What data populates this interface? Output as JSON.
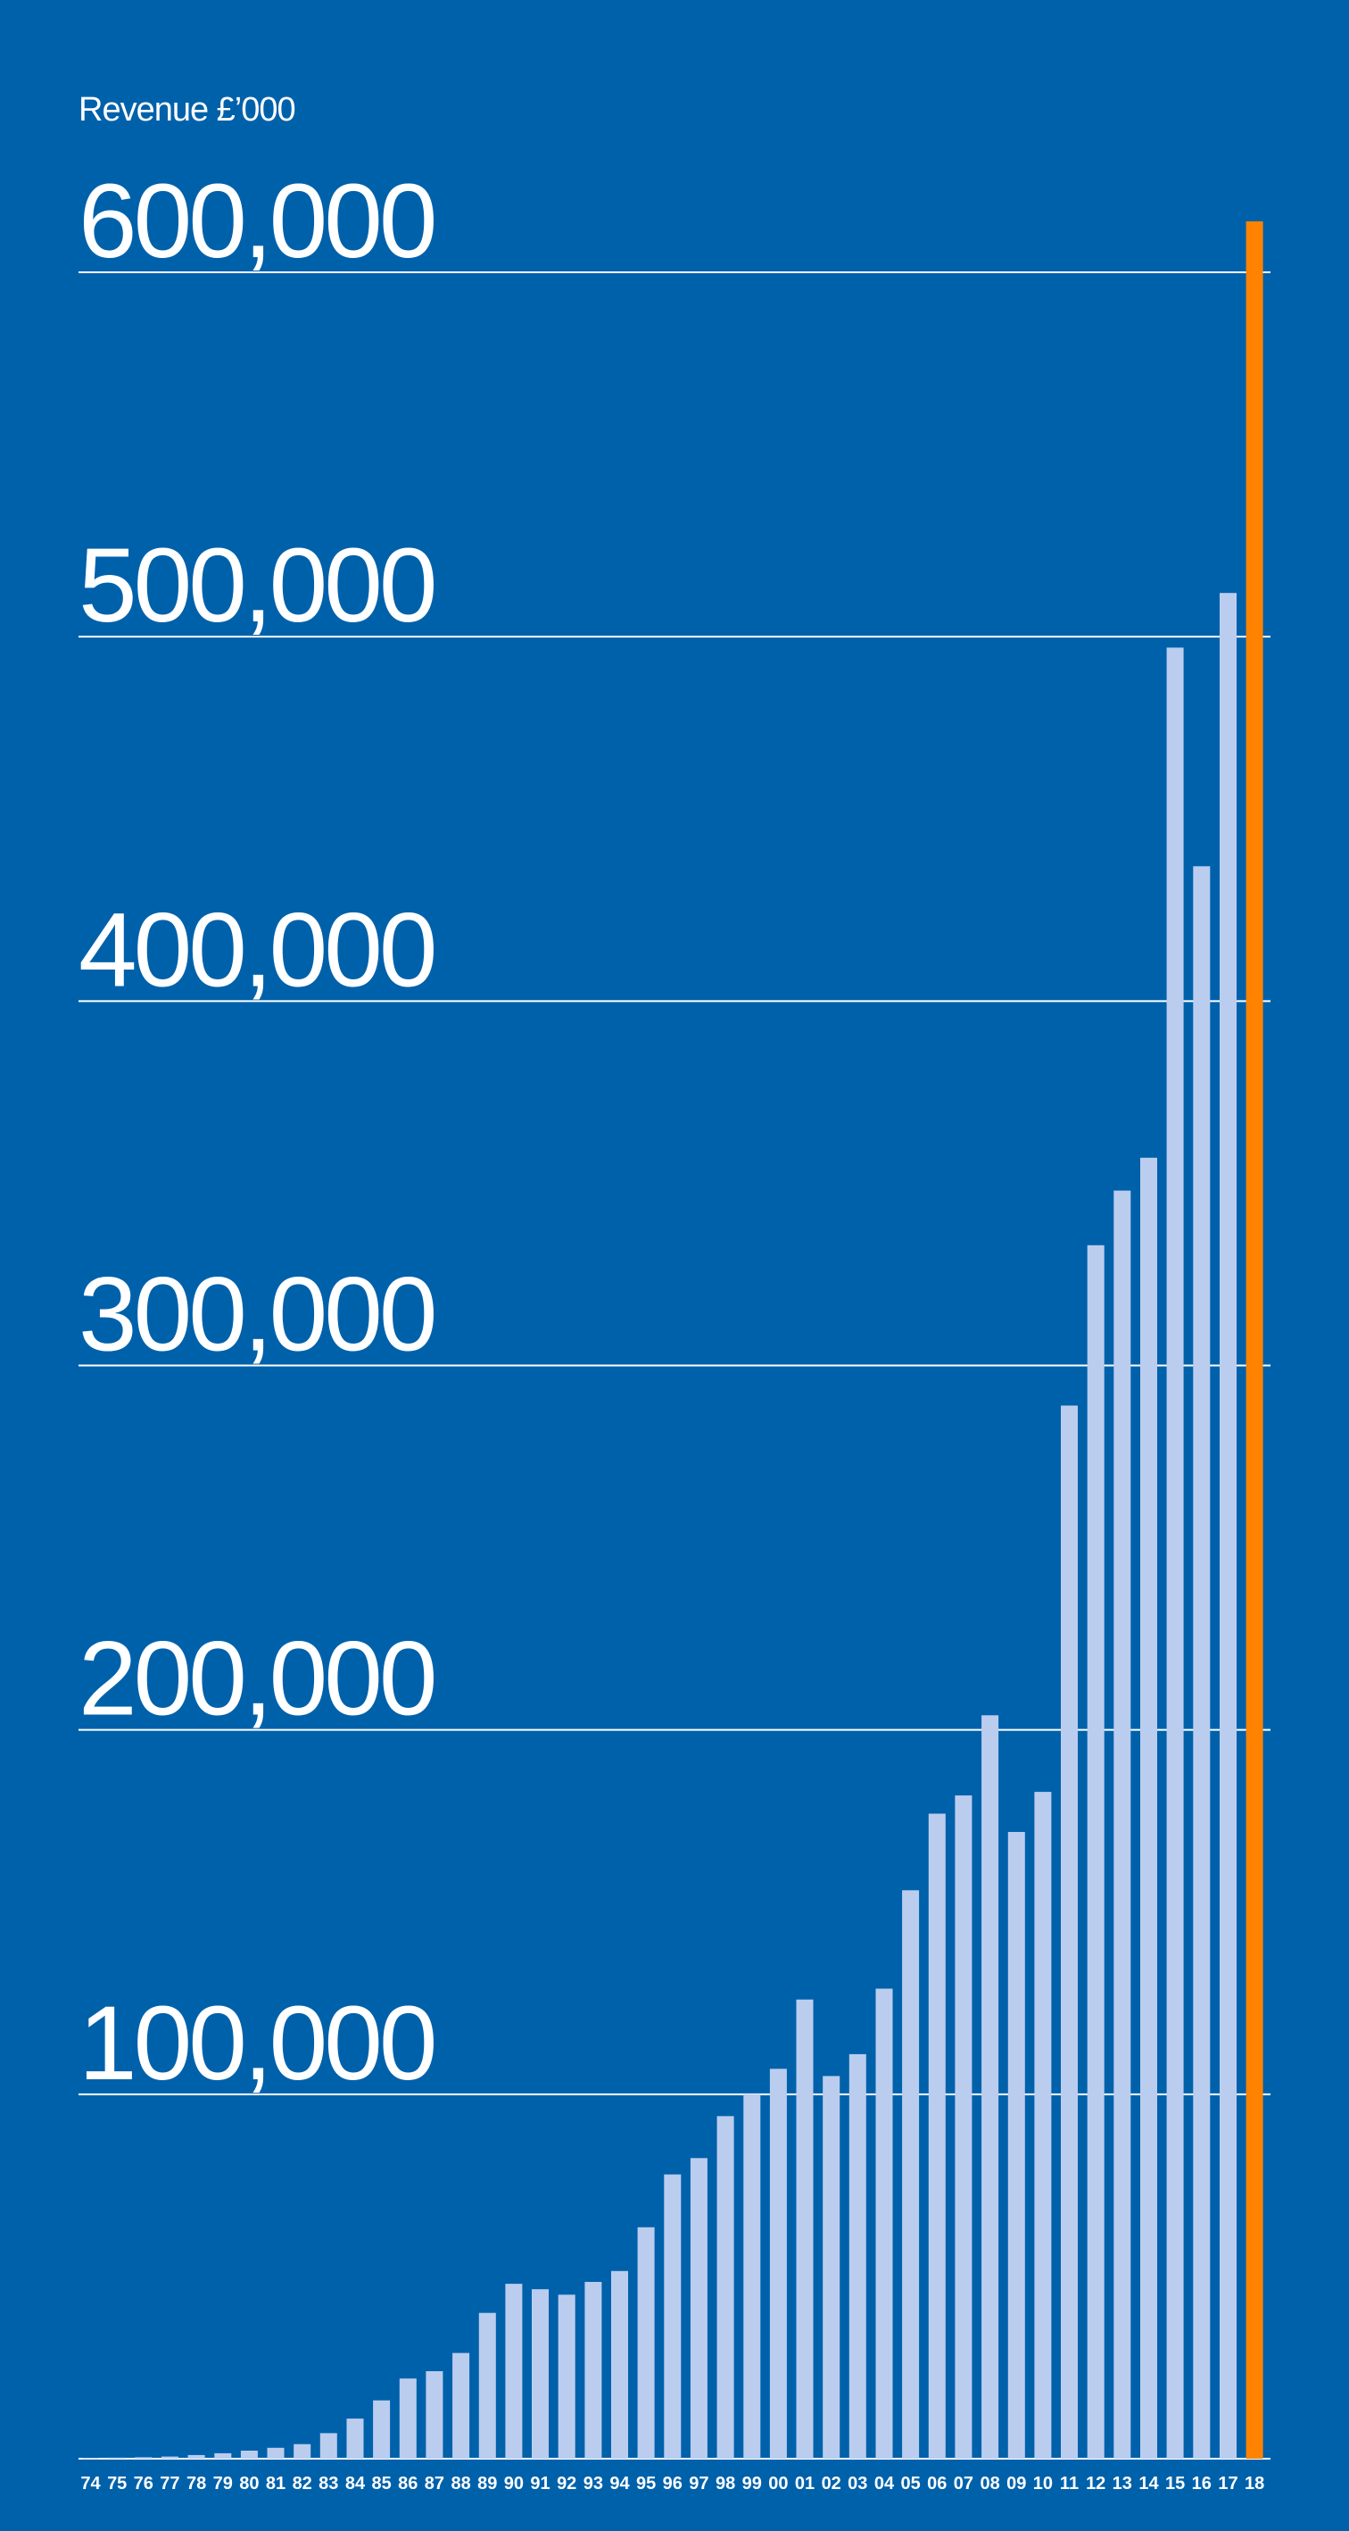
{
  "chart_data": {
    "type": "bar",
    "ylabel": "Revenue £’000",
    "ylim": [
      0,
      620000
    ],
    "yticks": [
      100000,
      200000,
      300000,
      400000,
      500000,
      600000
    ],
    "ytick_labels": [
      "100,000",
      "200,000",
      "300,000",
      "400,000",
      "500,000",
      "600,000"
    ],
    "grid": true,
    "legend": "none",
    "categories": [
      "74",
      "75",
      "76",
      "77",
      "78",
      "79",
      "80",
      "81",
      "82",
      "83",
      "84",
      "85",
      "86",
      "87",
      "88",
      "89",
      "90",
      "91",
      "92",
      "93",
      "94",
      "95",
      "96",
      "97",
      "98",
      "99",
      "00",
      "01",
      "02",
      "03",
      "04",
      "05",
      "06",
      "07",
      "08",
      "09",
      "10",
      "11",
      "12",
      "13",
      "14",
      "15",
      "16",
      "17",
      "18"
    ],
    "values": [
      200,
      300,
      400,
      600,
      1000,
      1500,
      2200,
      3000,
      4000,
      7000,
      11000,
      16000,
      22000,
      24000,
      29000,
      40000,
      48000,
      46500,
      45000,
      48500,
      51500,
      63500,
      78000,
      82500,
      94000,
      100000,
      107000,
      126000,
      105000,
      111000,
      129000,
      156000,
      177000,
      182000,
      204000,
      172000,
      183000,
      289000,
      333000,
      348000,
      357000,
      497000,
      437000,
      512000,
      614000
    ],
    "colors": {
      "background": "#0061AB",
      "bar": "#BBCDEE",
      "highlight": "#FF8200",
      "grid": "#FFFFFF",
      "text": "#FFFFFF"
    },
    "highlight_index": 44
  }
}
